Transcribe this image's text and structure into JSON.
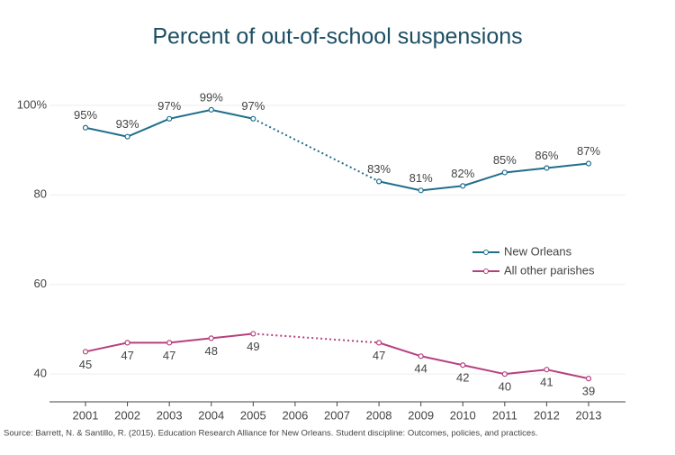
{
  "chart_data": {
    "type": "line",
    "title": "Percent of out-of-school suspensions",
    "source": "Source: Barrett, N. & Santillo, R. (2015). Education Research Alliance for New Orleans. Student discipline: Outcomes, policies, and practices.",
    "categories": [
      "2001",
      "2002",
      "2003",
      "2004",
      "2005",
      "2006",
      "2007",
      "2008",
      "2009",
      "2010",
      "2011",
      "2012",
      "2013"
    ],
    "series": [
      {
        "name": "New Orleans",
        "color": "#1f6e8c",
        "values": [
          95,
          93,
          97,
          99,
          97,
          null,
          null,
          83,
          81,
          82,
          85,
          86,
          87
        ],
        "value_labels": [
          "95%",
          "93%",
          "97%",
          "99%",
          "97%",
          null,
          null,
          "83%",
          "81%",
          "82%",
          "85%",
          "86%",
          "87%"
        ]
      },
      {
        "name": "All other parishes",
        "color": "#b5407e",
        "values": [
          45,
          47,
          47,
          48,
          49,
          null,
          null,
          47,
          44,
          42,
          40,
          41,
          39
        ]
      }
    ],
    "ylim": [
      33.8,
      104.4
    ],
    "yticks": [
      40,
      60,
      80,
      {
        "value": 100,
        "label": "100%"
      }
    ],
    "grid": true,
    "legend": "right"
  }
}
